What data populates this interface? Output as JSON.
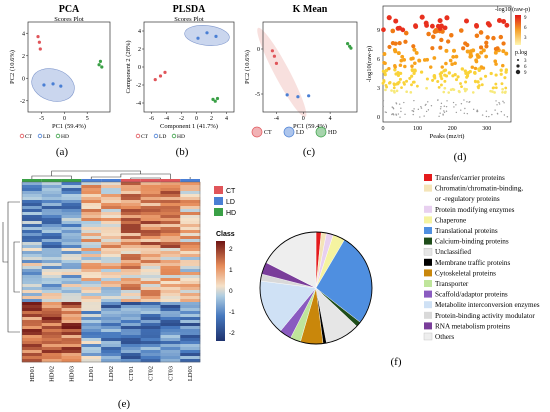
{
  "panels": {
    "a": {
      "label": "(a)",
      "title": "PCA",
      "subtitle": "Scores Plot",
      "xlabel": "PC1 (59.4%)",
      "ylabel": "PC2 (10.6%)",
      "xticks": [
        "-5",
        "0",
        "5"
      ],
      "yticks": [
        "-2",
        "0",
        "2",
        "4"
      ],
      "legend": [
        "CT",
        "LD",
        "HD"
      ]
    },
    "b": {
      "label": "(b)",
      "title": "PLSDA",
      "subtitle": "Scores Plot",
      "xlabel": "Component 1 (41.7%)",
      "ylabel": "Component 2 (28%)",
      "xticks": [
        "-6",
        "-4",
        "-2",
        "0",
        "2",
        "4"
      ],
      "yticks": [
        "-4",
        "-2",
        "0",
        "2",
        "4"
      ],
      "legend": [
        "CT",
        "LD",
        "HD"
      ]
    },
    "c": {
      "label": "(c)",
      "title": "K Mean",
      "xlabel": "PC1 (59.4%)",
      "ylabel": "PC2 (10.6%)",
      "xticks": [
        "-4",
        "0",
        "4"
      ],
      "yticks": [
        "-5",
        "0"
      ],
      "legend": [
        "CT",
        "LD",
        "HD"
      ]
    },
    "d": {
      "label": "(d)",
      "xlabel": "Peaks (mz/rt)",
      "ylabel": "-log10(raw-p)",
      "xticks": [
        "0",
        "100",
        "200",
        "300"
      ],
      "yticks": [
        "0",
        "3",
        "6",
        "9"
      ],
      "legend_title": "-log10 (raw-p)",
      "legend_ticks": [
        "9",
        "6",
        "3"
      ],
      "size_title": "p.log",
      "size_ticks": [
        "3",
        "6",
        "9"
      ]
    },
    "e": {
      "label": "(e)",
      "legend_title": "Class",
      "classes": [
        "CT",
        "LD",
        "HD"
      ],
      "scale_ticks": [
        "2",
        "1",
        "0",
        "-1",
        "-2"
      ],
      "columns": [
        "HD01",
        "HD02",
        "HD03",
        "LD01",
        "LD02",
        "CT01",
        "CT02",
        "CT03",
        "LD03"
      ]
    },
    "f": {
      "label": "(f)",
      "categories": [
        "Transfer/carrier proteins",
        "Chromatin/chromatin-binding,",
        "or -regulatory proteins",
        "Protein modifying enzymes",
        "Chaperone",
        "Translational proteins",
        "Calcium-binding proteins",
        "Unclassified",
        "Membrane traffic proteins",
        "Cytoskeletal proteins",
        "Transporter",
        "Scaffold/adaptor proteins",
        "Metabolite interconversion enzymes",
        "Protein-binding activity modulator",
        "RNA metabolism proteins",
        "Others"
      ]
    }
  },
  "colors": {
    "CT": "#e0555a",
    "LD": "#4a7fd4",
    "HD": "#3aa046",
    "ellipse_blue": "#9fb4e0",
    "ellipse_red": "#f2c6c2"
  },
  "chart_data": [
    {
      "type": "scatter",
      "title": "PCA",
      "xlim": [
        -8,
        10
      ],
      "ylim": [
        -3,
        5
      ],
      "series": [
        {
          "name": "CT",
          "x": [
            -5.8,
            -5.5,
            -5.3
          ],
          "y": [
            3.7,
            3.2,
            2.6
          ]
        },
        {
          "name": "LD",
          "x": [
            -4.5,
            -2.5,
            -0.8
          ],
          "y": [
            -0.6,
            -0.5,
            -0.7
          ]
        },
        {
          "name": "HD",
          "x": [
            7.6,
            7.9,
            8.2
          ],
          "y": [
            1.2,
            1.5,
            1.0
          ]
        }
      ]
    },
    {
      "type": "scatter",
      "title": "PLSDA",
      "xlim": [
        -7,
        5
      ],
      "ylim": [
        -5,
        5
      ],
      "series": [
        {
          "name": "CT",
          "x": [
            -5.5,
            -4.8,
            -4.2
          ],
          "y": [
            -1.4,
            -1.0,
            -0.6
          ]
        },
        {
          "name": "LD",
          "x": [
            0.2,
            1.4,
            2.6
          ],
          "y": [
            3.2,
            3.8,
            3.4
          ]
        },
        {
          "name": "HD",
          "x": [
            2.2,
            2.5,
            2.8
          ],
          "y": [
            -3.6,
            -3.8,
            -3.5
          ]
        }
      ]
    },
    {
      "type": "scatter",
      "title": "K Mean",
      "xlim": [
        -6,
        8
      ],
      "ylim": [
        -7,
        3
      ],
      "series": [
        {
          "name": "CT",
          "x": [
            -4.6,
            -4.3,
            -4.0
          ],
          "y": [
            -0.2,
            -0.8,
            -1.6
          ]
        },
        {
          "name": "LD",
          "x": [
            -2.4,
            -0.8,
            0.8
          ],
          "y": [
            -5.1,
            -5.3,
            -5.2
          ]
        },
        {
          "name": "HD",
          "x": [
            6.6,
            6.9,
            7.1
          ],
          "y": [
            0.6,
            0.3,
            0.1
          ]
        }
      ]
    },
    {
      "type": "pie",
      "title": "",
      "labels": [
        "Transfer/carrier proteins",
        "Chromatin/chromatin-binding, or -regulatory proteins",
        "Protein modifying enzymes",
        "Chaperone",
        "Translational proteins",
        "Calcium-binding proteins",
        "Unclassified",
        "Membrane traffic proteins",
        "Cytoskeletal proteins",
        "Transporter",
        "Scaffold/adaptor proteins",
        "Metabolite interconversion enzymes",
        "Protein-binding activity modulator",
        "RNA metabolism proteins",
        "Others"
      ],
      "values": [
        1.5,
        1.5,
        2.0,
        3.5,
        27,
        1.5,
        10,
        1.0,
        6.5,
        3.0,
        3.5,
        16,
        2.0,
        3.5,
        17.5
      ],
      "colors": [
        "#e41a1c",
        "#f4e4b8",
        "#e8d0f0",
        "#f5f3a0",
        "#4f8fe0",
        "#1f4d1a",
        "#e6e6e6",
        "#000000",
        "#c9870b",
        "#bfe59b",
        "#8a5bc0",
        "#cfe1f5",
        "#d9d9d9",
        "#7a3d9a",
        "#eeeeee"
      ]
    }
  ]
}
